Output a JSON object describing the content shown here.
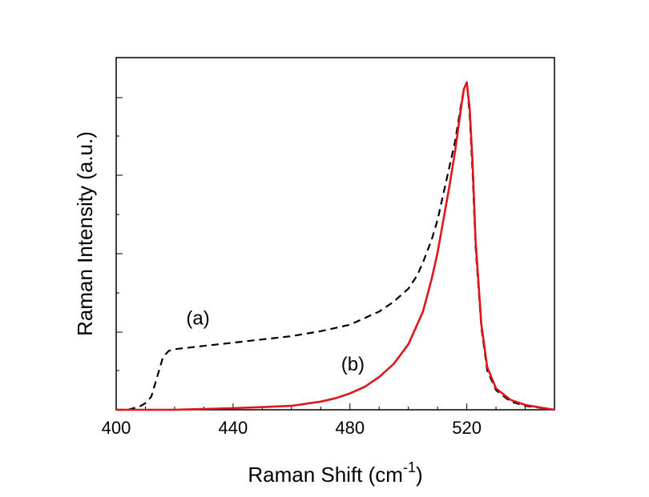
{
  "chart_data": {
    "type": "line",
    "title": "",
    "xlabel": "Raman Shift (cm",
    "xlabel_sup": "-1",
    "xlabel_end": ")",
    "ylabel": "Raman Intensity (a.u.)",
    "xlim": [
      400,
      550
    ],
    "ylim": [
      0,
      1.0
    ],
    "x_ticks": [
      400,
      440,
      480,
      520
    ],
    "y_tick_labels_shown": false,
    "grid": false,
    "legend": "none",
    "annotations": [
      {
        "text": "(a)",
        "x": 428,
        "y": 0.26
      },
      {
        "text": "(b)",
        "x": 481,
        "y": 0.12
      }
    ],
    "series": [
      {
        "name": "(a)",
        "style": "dashed",
        "color": "#000000",
        "x": [
          400,
          404,
          408,
          410,
          412,
          414,
          416,
          418,
          420,
          425,
          430,
          440,
          450,
          460,
          470,
          475,
          480,
          485,
          490,
          495,
          500,
          503,
          505,
          508,
          510,
          512,
          514,
          516,
          518,
          519,
          520,
          521,
          522,
          523,
          525,
          527,
          530,
          535,
          540,
          545,
          550
        ],
        "y": [
          0.0,
          0.0,
          0.01,
          0.02,
          0.04,
          0.1,
          0.16,
          0.18,
          0.185,
          0.19,
          0.195,
          0.205,
          0.215,
          0.225,
          0.24,
          0.25,
          0.26,
          0.28,
          0.3,
          0.33,
          0.37,
          0.41,
          0.45,
          0.52,
          0.58,
          0.66,
          0.74,
          0.82,
          0.93,
          0.98,
          1.0,
          0.9,
          0.72,
          0.5,
          0.25,
          0.12,
          0.06,
          0.025,
          0.012,
          0.006,
          0.0
        ]
      },
      {
        "name": "(b)",
        "style": "solid",
        "color": "#e0161b",
        "x": [
          400,
          420,
          440,
          450,
          460,
          470,
          475,
          480,
          485,
          490,
          495,
          500,
          505,
          508,
          510,
          512,
          514,
          516,
          518,
          519,
          520,
          521,
          522,
          523,
          525,
          527,
          530,
          535,
          540,
          545,
          550
        ],
        "y": [
          0.0,
          0.0,
          0.005,
          0.008,
          0.012,
          0.025,
          0.035,
          0.05,
          0.07,
          0.1,
          0.14,
          0.2,
          0.3,
          0.4,
          0.48,
          0.58,
          0.68,
          0.79,
          0.92,
          0.98,
          1.0,
          0.92,
          0.75,
          0.52,
          0.26,
          0.13,
          0.065,
          0.03,
          0.015,
          0.007,
          0.0
        ]
      }
    ]
  }
}
